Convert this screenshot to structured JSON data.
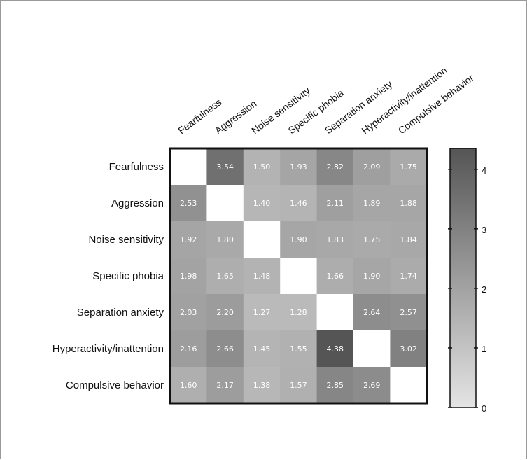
{
  "chart_data": {
    "type": "heatmap",
    "row_labels": [
      "Fearfulness",
      "Aggression",
      "Noise sensitivity",
      "Specific phobia",
      "Separation anxiety",
      "Hyperactivity/inattention",
      "Compulsive behavior"
    ],
    "col_labels": [
      "Fearfulness",
      "Aggression",
      "Noise sensitivity",
      "Specific phobia",
      "Separation anxiety",
      "Hyperactivity/inattention",
      "Compulsive behavior"
    ],
    "values": [
      [
        null,
        3.54,
        1.5,
        1.93,
        2.82,
        2.09,
        1.75
      ],
      [
        2.53,
        null,
        1.4,
        1.46,
        2.11,
        1.89,
        1.88
      ],
      [
        1.92,
        1.8,
        null,
        1.9,
        1.83,
        1.75,
        1.84
      ],
      [
        1.98,
        1.65,
        1.48,
        null,
        1.66,
        1.9,
        1.74
      ],
      [
        2.03,
        2.2,
        1.27,
        1.28,
        null,
        2.64,
        2.57
      ],
      [
        2.16,
        2.66,
        1.45,
        1.55,
        4.38,
        null,
        3.02
      ],
      [
        1.6,
        2.17,
        1.38,
        1.57,
        2.85,
        2.69,
        null
      ]
    ],
    "colorbar": {
      "range": [
        0,
        4.35
      ],
      "ticks": [
        0,
        1,
        2,
        3,
        4
      ],
      "low_color": "#e4e4e4",
      "high_color": "#555555"
    },
    "diagonal_color": "#ffffff"
  }
}
